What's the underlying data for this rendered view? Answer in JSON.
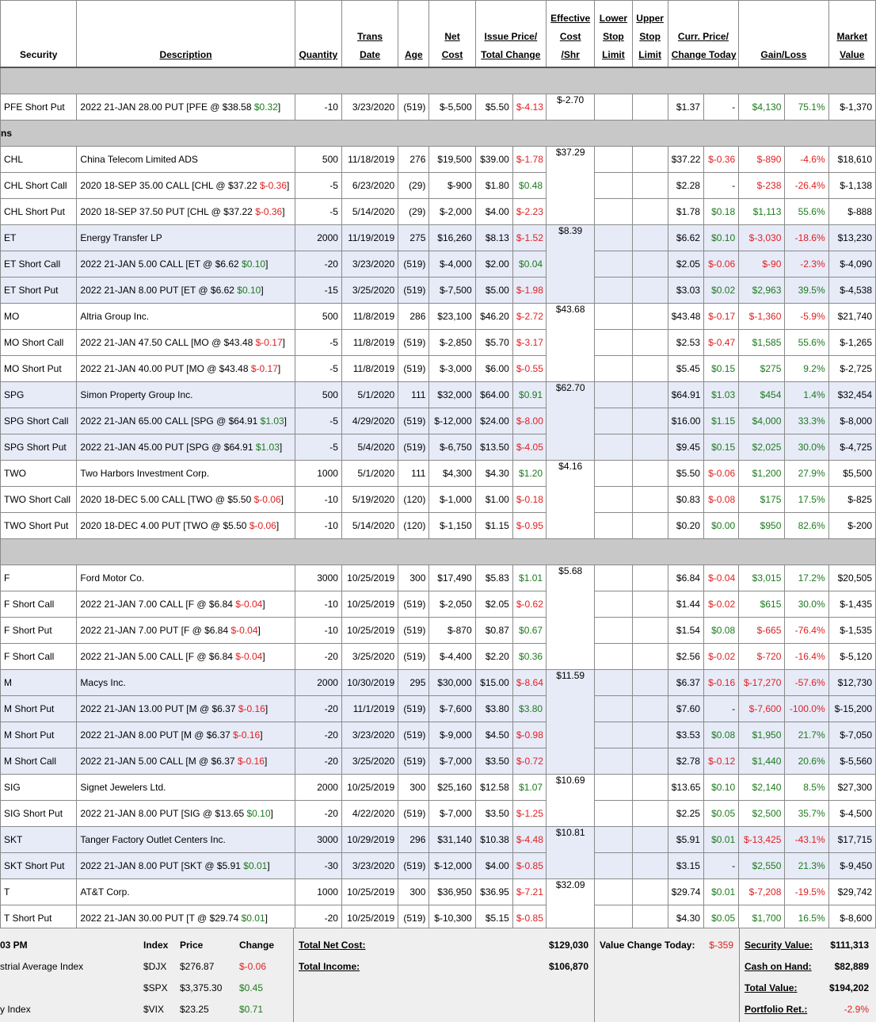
{
  "headers": {
    "security": "Security",
    "description": "Description",
    "quantity": "Quantity",
    "trans_date": [
      "Trans",
      "Date"
    ],
    "age": "Age",
    "net_cost": [
      "Net",
      "Cost"
    ],
    "issue_price": [
      "Issue Price/",
      "Total Change"
    ],
    "effective_cost": [
      "Effective",
      "Cost",
      "/Shr"
    ],
    "lower_stop": [
      "Lower",
      "Stop",
      "Limit"
    ],
    "upper_stop": [
      "Upper",
      "Stop",
      "Limit"
    ],
    "curr_price": [
      "Curr. Price/",
      "Change Today"
    ],
    "gain_loss": "Gain/Loss",
    "market_value": [
      "Market",
      "Value"
    ]
  },
  "sections": {
    "s2_label": "ns"
  },
  "rows": [
    {
      "sec": "PFE Short Put",
      "desc": "2022 21-JAN 28.00 PUT [PFE @ $38.58 ",
      "dchg": "$0.32",
      "dcls": "pos",
      "qty": "-10",
      "date": "3/23/2020",
      "age": "(519)",
      "net": "$-5,500",
      "issue": "$5.50",
      "tchg": "$-4.13",
      "tcls": "neg",
      "eff": "$-2.70",
      "curr": "$1.37",
      "ctoday": "-",
      "ccls": "",
      "gl": "$4,130",
      "glcls": "pos",
      "glpct": "75.1%",
      "mv": "$-1,370",
      "alt": false,
      "effspan": 1
    },
    {
      "sec": "CHL",
      "desc": "China Telecom Limited ADS",
      "dchg": "",
      "dcls": "",
      "qty": "500",
      "date": "11/18/2019",
      "age": "276",
      "net": "$19,500",
      "issue": "$39.00",
      "tchg": "$-1.78",
      "tcls": "neg",
      "eff": "$37.29",
      "curr": "$37.22",
      "ctoday": "$-0.36",
      "ccls": "neg",
      "gl": "$-890",
      "glcls": "neg",
      "glpct": "-4.6%",
      "mv": "$18,610",
      "alt": false,
      "effspan": 3
    },
    {
      "sec": "CHL Short Call",
      "desc": "2020 18-SEP 35.00 CALL [CHL @ $37.22 ",
      "dchg": "$-0.36",
      "dcls": "neg",
      "qty": "-5",
      "date": "6/23/2020",
      "age": "(29)",
      "net": "$-900",
      "issue": "$1.80",
      "tchg": "$0.48",
      "tcls": "pos",
      "eff": "",
      "curr": "$2.28",
      "ctoday": "-",
      "ccls": "",
      "gl": "$-238",
      "glcls": "neg",
      "glpct": "-26.4%",
      "mv": "$-1,138",
      "alt": false,
      "effspan": 0
    },
    {
      "sec": "CHL Short Put",
      "desc": "2020 18-SEP 37.50 PUT [CHL @ $37.22 ",
      "dchg": "$-0.36",
      "dcls": "neg",
      "qty": "-5",
      "date": "5/14/2020",
      "age": "(29)",
      "net": "$-2,000",
      "issue": "$4.00",
      "tchg": "$-2.23",
      "tcls": "neg",
      "eff": "",
      "curr": "$1.78",
      "ctoday": "$0.18",
      "ccls": "pos",
      "gl": "$1,113",
      "glcls": "pos",
      "glpct": "55.6%",
      "mv": "$-888",
      "alt": false,
      "effspan": 0
    },
    {
      "sec": "ET",
      "desc": "Energy Transfer LP",
      "dchg": "",
      "dcls": "",
      "qty": "2000",
      "date": "11/19/2019",
      "age": "275",
      "net": "$16,260",
      "issue": "$8.13",
      "tchg": "$-1.52",
      "tcls": "neg",
      "eff": "$8.39",
      "curr": "$6.62",
      "ctoday": "$0.10",
      "ccls": "pos",
      "gl": "$-3,030",
      "glcls": "neg",
      "glpct": "-18.6%",
      "mv": "$13,230",
      "alt": true,
      "effspan": 3
    },
    {
      "sec": "ET Short Call",
      "desc": "2022 21-JAN 5.00 CALL [ET @ $6.62 ",
      "dchg": "$0.10",
      "dcls": "pos",
      "qty": "-20",
      "date": "3/23/2020",
      "age": "(519)",
      "net": "$-4,000",
      "issue": "$2.00",
      "tchg": "$0.04",
      "tcls": "pos",
      "eff": "",
      "curr": "$2.05",
      "ctoday": "$-0.06",
      "ccls": "neg",
      "gl": "$-90",
      "glcls": "neg",
      "glpct": "-2.3%",
      "mv": "$-4,090",
      "alt": true,
      "effspan": 0
    },
    {
      "sec": "ET Short Put",
      "desc": "2022 21-JAN 8.00 PUT [ET @ $6.62 ",
      "dchg": "$0.10",
      "dcls": "pos",
      "qty": "-15",
      "date": "3/25/2020",
      "age": "(519)",
      "net": "$-7,500",
      "issue": "$5.00",
      "tchg": "$-1.98",
      "tcls": "neg",
      "eff": "",
      "curr": "$3.03",
      "ctoday": "$0.02",
      "ccls": "pos",
      "gl": "$2,963",
      "glcls": "pos",
      "glpct": "39.5%",
      "mv": "$-4,538",
      "alt": true,
      "effspan": 0
    },
    {
      "sec": "MO",
      "desc": "Altria Group Inc.",
      "dchg": "",
      "dcls": "",
      "qty": "500",
      "date": "11/8/2019",
      "age": "286",
      "net": "$23,100",
      "issue": "$46.20",
      "tchg": "$-2.72",
      "tcls": "neg",
      "eff": "$43.68",
      "curr": "$43.48",
      "ctoday": "$-0.17",
      "ccls": "neg",
      "gl": "$-1,360",
      "glcls": "neg",
      "glpct": "-5.9%",
      "mv": "$21,740",
      "alt": false,
      "effspan": 3
    },
    {
      "sec": "MO Short Call",
      "desc": "2022 21-JAN 47.50 CALL [MO @ $43.48 ",
      "dchg": "$-0.17",
      "dcls": "neg",
      "qty": "-5",
      "date": "11/8/2019",
      "age": "(519)",
      "net": "$-2,850",
      "issue": "$5.70",
      "tchg": "$-3.17",
      "tcls": "neg",
      "eff": "",
      "curr": "$2.53",
      "ctoday": "$-0.47",
      "ccls": "neg",
      "gl": "$1,585",
      "glcls": "pos",
      "glpct": "55.6%",
      "mv": "$-1,265",
      "alt": false,
      "effspan": 0
    },
    {
      "sec": "MO Short Put",
      "desc": "2022 21-JAN 40.00 PUT [MO @ $43.48 ",
      "dchg": "$-0.17",
      "dcls": "neg",
      "qty": "-5",
      "date": "11/8/2019",
      "age": "(519)",
      "net": "$-3,000",
      "issue": "$6.00",
      "tchg": "$-0.55",
      "tcls": "neg",
      "eff": "",
      "curr": "$5.45",
      "ctoday": "$0.15",
      "ccls": "pos",
      "gl": "$275",
      "glcls": "pos",
      "glpct": "9.2%",
      "mv": "$-2,725",
      "alt": false,
      "effspan": 0
    },
    {
      "sec": "SPG",
      "desc": "Simon Property Group Inc.",
      "dchg": "",
      "dcls": "",
      "qty": "500",
      "date": "5/1/2020",
      "age": "111",
      "net": "$32,000",
      "issue": "$64.00",
      "tchg": "$0.91",
      "tcls": "pos",
      "eff": "$62.70",
      "curr": "$64.91",
      "ctoday": "$1.03",
      "ccls": "pos",
      "gl": "$454",
      "glcls": "pos",
      "glpct": "1.4%",
      "mv": "$32,454",
      "alt": true,
      "effspan": 3
    },
    {
      "sec": "SPG Short Call",
      "desc": "2022 21-JAN 65.00 CALL [SPG @ $64.91 ",
      "dchg": "$1.03",
      "dcls": "pos",
      "qty": "-5",
      "date": "4/29/2020",
      "age": "(519)",
      "net": "$-12,000",
      "issue": "$24.00",
      "tchg": "$-8.00",
      "tcls": "neg",
      "eff": "",
      "curr": "$16.00",
      "ctoday": "$1.15",
      "ccls": "pos",
      "gl": "$4,000",
      "glcls": "pos",
      "glpct": "33.3%",
      "mv": "$-8,000",
      "alt": true,
      "effspan": 0
    },
    {
      "sec": "SPG Short Put",
      "desc": "2022 21-JAN 45.00 PUT [SPG @ $64.91 ",
      "dchg": "$1.03",
      "dcls": "pos",
      "qty": "-5",
      "date": "5/4/2020",
      "age": "(519)",
      "net": "$-6,750",
      "issue": "$13.50",
      "tchg": "$-4.05",
      "tcls": "neg",
      "eff": "",
      "curr": "$9.45",
      "ctoday": "$0.15",
      "ccls": "pos",
      "gl": "$2,025",
      "glcls": "pos",
      "glpct": "30.0%",
      "mv": "$-4,725",
      "alt": true,
      "effspan": 0
    },
    {
      "sec": "TWO",
      "desc": "Two Harbors Investment Corp.",
      "dchg": "",
      "dcls": "",
      "qty": "1000",
      "date": "5/1/2020",
      "age": "111",
      "net": "$4,300",
      "issue": "$4.30",
      "tchg": "$1.20",
      "tcls": "pos",
      "eff": "$4.16",
      "curr": "$5.50",
      "ctoday": "$-0.06",
      "ccls": "neg",
      "gl": "$1,200",
      "glcls": "pos",
      "glpct": "27.9%",
      "mv": "$5,500",
      "alt": false,
      "effspan": 3
    },
    {
      "sec": "TWO Short Call",
      "desc": "2020 18-DEC 5.00 CALL [TWO @ $5.50 ",
      "dchg": "$-0.06",
      "dcls": "neg",
      "qty": "-10",
      "date": "5/19/2020",
      "age": "(120)",
      "net": "$-1,000",
      "issue": "$1.00",
      "tchg": "$-0.18",
      "tcls": "neg",
      "eff": "",
      "curr": "$0.83",
      "ctoday": "$-0.08",
      "ccls": "neg",
      "gl": "$175",
      "glcls": "pos",
      "glpct": "17.5%",
      "mv": "$-825",
      "alt": false,
      "effspan": 0
    },
    {
      "sec": "TWO Short Put",
      "desc": "2020 18-DEC 4.00 PUT [TWO @ $5.50 ",
      "dchg": "$-0.06",
      "dcls": "neg",
      "qty": "-10",
      "date": "5/14/2020",
      "age": "(120)",
      "net": "$-1,150",
      "issue": "$1.15",
      "tchg": "$-0.95",
      "tcls": "neg",
      "eff": "",
      "curr": "$0.20",
      "ctoday": "$0.00",
      "ccls": "pos",
      "gl": "$950",
      "glcls": "pos",
      "glpct": "82.6%",
      "mv": "$-200",
      "alt": false,
      "effspan": 0
    },
    {
      "sec": "F",
      "desc": "Ford Motor Co.",
      "dchg": "",
      "dcls": "",
      "qty": "3000",
      "date": "10/25/2019",
      "age": "300",
      "net": "$17,490",
      "issue": "$5.83",
      "tchg": "$1.01",
      "tcls": "pos",
      "eff": "$5.68",
      "curr": "$6.84",
      "ctoday": "$-0.04",
      "ccls": "neg",
      "gl": "$3,015",
      "glcls": "pos",
      "glpct": "17.2%",
      "mv": "$20,505",
      "alt": false,
      "effspan": 4
    },
    {
      "sec": "F Short Call",
      "desc": "2022 21-JAN 7.00 CALL [F @ $6.84 ",
      "dchg": "$-0.04",
      "dcls": "neg",
      "qty": "-10",
      "date": "10/25/2019",
      "age": "(519)",
      "net": "$-2,050",
      "issue": "$2.05",
      "tchg": "$-0.62",
      "tcls": "neg",
      "eff": "",
      "curr": "$1.44",
      "ctoday": "$-0.02",
      "ccls": "neg",
      "gl": "$615",
      "glcls": "pos",
      "glpct": "30.0%",
      "mv": "$-1,435",
      "alt": false,
      "effspan": 0
    },
    {
      "sec": "F Short Put",
      "desc": "2022 21-JAN 7.00 PUT [F @ $6.84 ",
      "dchg": "$-0.04",
      "dcls": "neg",
      "qty": "-10",
      "date": "10/25/2019",
      "age": "(519)",
      "net": "$-870",
      "issue": "$0.87",
      "tchg": "$0.67",
      "tcls": "pos",
      "eff": "",
      "curr": "$1.54",
      "ctoday": "$0.08",
      "ccls": "pos",
      "gl": "$-665",
      "glcls": "neg",
      "glpct": "-76.4%",
      "mv": "$-1,535",
      "alt": false,
      "effspan": 0
    },
    {
      "sec": "F Short Call",
      "desc": "2022 21-JAN 5.00 CALL [F @ $6.84 ",
      "dchg": "$-0.04",
      "dcls": "neg",
      "qty": "-20",
      "date": "3/25/2020",
      "age": "(519)",
      "net": "$-4,400",
      "issue": "$2.20",
      "tchg": "$0.36",
      "tcls": "pos",
      "eff": "",
      "curr": "$2.56",
      "ctoday": "$-0.02",
      "ccls": "neg",
      "gl": "$-720",
      "glcls": "neg",
      "glpct": "-16.4%",
      "mv": "$-5,120",
      "alt": false,
      "effspan": 0
    },
    {
      "sec": "M",
      "desc": "Macys Inc.",
      "dchg": "",
      "dcls": "",
      "qty": "2000",
      "date": "10/30/2019",
      "age": "295",
      "net": "$30,000",
      "issue": "$15.00",
      "tchg": "$-8.64",
      "tcls": "neg",
      "eff": "$11.59",
      "curr": "$6.37",
      "ctoday": "$-0.16",
      "ccls": "neg",
      "gl": "$-17,270",
      "glcls": "neg",
      "glpct": "-57.6%",
      "mv": "$12,730",
      "alt": true,
      "effspan": 4
    },
    {
      "sec": "M Short Put",
      "desc": "2022 21-JAN 13.00 PUT [M @ $6.37 ",
      "dchg": "$-0.16",
      "dcls": "neg",
      "qty": "-20",
      "date": "11/1/2019",
      "age": "(519)",
      "net": "$-7,600",
      "issue": "$3.80",
      "tchg": "$3.80",
      "tcls": "pos",
      "eff": "",
      "curr": "$7.60",
      "ctoday": "-",
      "ccls": "",
      "gl": "$-7,600",
      "glcls": "neg",
      "glpct": "-100.0%",
      "mv": "$-15,200",
      "alt": true,
      "effspan": 0
    },
    {
      "sec": "M Short Put",
      "desc": "2022 21-JAN 8.00 PUT [M @ $6.37 ",
      "dchg": "$-0.16",
      "dcls": "neg",
      "qty": "-20",
      "date": "3/23/2020",
      "age": "(519)",
      "net": "$-9,000",
      "issue": "$4.50",
      "tchg": "$-0.98",
      "tcls": "neg",
      "eff": "",
      "curr": "$3.53",
      "ctoday": "$0.08",
      "ccls": "pos",
      "gl": "$1,950",
      "glcls": "pos",
      "glpct": "21.7%",
      "mv": "$-7,050",
      "alt": true,
      "effspan": 0
    },
    {
      "sec": "M Short Call",
      "desc": "2022 21-JAN 5.00 CALL [M @ $6.37 ",
      "dchg": "$-0.16",
      "dcls": "neg",
      "qty": "-20",
      "date": "3/25/2020",
      "age": "(519)",
      "net": "$-7,000",
      "issue": "$3.50",
      "tchg": "$-0.72",
      "tcls": "neg",
      "eff": "",
      "curr": "$2.78",
      "ctoday": "$-0.12",
      "ccls": "neg",
      "gl": "$1,440",
      "glcls": "pos",
      "glpct": "20.6%",
      "mv": "$-5,560",
      "alt": true,
      "effspan": 0
    },
    {
      "sec": "SIG",
      "desc": "Signet Jewelers Ltd.",
      "dchg": "",
      "dcls": "",
      "qty": "2000",
      "date": "10/25/2019",
      "age": "300",
      "net": "$25,160",
      "issue": "$12.58",
      "tchg": "$1.07",
      "tcls": "pos",
      "eff": "$10.69",
      "curr": "$13.65",
      "ctoday": "$0.10",
      "ccls": "pos",
      "gl": "$2,140",
      "glcls": "pos",
      "glpct": "8.5%",
      "mv": "$27,300",
      "alt": false,
      "effspan": 2
    },
    {
      "sec": "SIG Short Put",
      "desc": "2022 21-JAN 8.00 PUT [SIG @ $13.65 ",
      "dchg": "$0.10",
      "dcls": "pos",
      "qty": "-20",
      "date": "4/22/2020",
      "age": "(519)",
      "net": "$-7,000",
      "issue": "$3.50",
      "tchg": "$-1.25",
      "tcls": "neg",
      "eff": "",
      "curr": "$2.25",
      "ctoday": "$0.05",
      "ccls": "pos",
      "gl": "$2,500",
      "glcls": "pos",
      "glpct": "35.7%",
      "mv": "$-4,500",
      "alt": false,
      "effspan": 0
    },
    {
      "sec": "SKT",
      "desc": "Tanger Factory Outlet Centers Inc.",
      "dchg": "",
      "dcls": "",
      "qty": "3000",
      "date": "10/29/2019",
      "age": "296",
      "net": "$31,140",
      "issue": "$10.38",
      "tchg": "$-4.48",
      "tcls": "neg",
      "eff": "$10.81",
      "curr": "$5.91",
      "ctoday": "$0.01",
      "ccls": "pos",
      "gl": "$-13,425",
      "glcls": "neg",
      "glpct": "-43.1%",
      "mv": "$17,715",
      "alt": true,
      "effspan": 2
    },
    {
      "sec": "SKT Short Put",
      "desc": "2022 21-JAN 8.00 PUT [SKT @ $5.91 ",
      "dchg": "$0.01",
      "dcls": "pos",
      "qty": "-30",
      "date": "3/23/2020",
      "age": "(519)",
      "net": "$-12,000",
      "issue": "$4.00",
      "tchg": "$-0.85",
      "tcls": "neg",
      "eff": "",
      "curr": "$3.15",
      "ctoday": "-",
      "ccls": "",
      "gl": "$2,550",
      "glcls": "pos",
      "glpct": "21.3%",
      "mv": "$-9,450",
      "alt": true,
      "effspan": 0
    },
    {
      "sec": "T",
      "desc": "AT&T Corp.",
      "dchg": "",
      "dcls": "",
      "qty": "1000",
      "date": "10/25/2019",
      "age": "300",
      "net": "$36,950",
      "issue": "$36.95",
      "tchg": "$-7.21",
      "tcls": "neg",
      "eff": "$32.09",
      "curr": "$29.74",
      "ctoday": "$0.01",
      "ccls": "pos",
      "gl": "$-7,208",
      "glcls": "neg",
      "glpct": "-19.5%",
      "mv": "$29,742",
      "alt": false,
      "effspan": 2
    },
    {
      "sec": "T Short Put",
      "desc": "2022 21-JAN 30.00 PUT [T @ $29.74 ",
      "dchg": "$0.01",
      "dcls": "pos",
      "qty": "-20",
      "date": "10/25/2019",
      "age": "(519)",
      "net": "$-10,300",
      "issue": "$5.15",
      "tchg": "$-0.85",
      "tcls": "neg",
      "eff": "",
      "curr": "$4.30",
      "ctoday": "$0.05",
      "ccls": "pos",
      "gl": "$1,700",
      "glcls": "pos",
      "glpct": "16.5%",
      "mv": "$-8,600",
      "alt": false,
      "effspan": 0
    }
  ],
  "footer": {
    "time": "03 PM",
    "index_header": "Index",
    "price_header": "Price",
    "change_header": "Change",
    "indices": [
      {
        "name": "strial Average Index",
        "sym": "$DJX",
        "price": "$276.87",
        "chg": "$-0.06",
        "cls": "neg"
      },
      {
        "name": "",
        "sym": "$SPX",
        "price": "$3,375.30",
        "chg": "$0.45",
        "cls": "pos"
      },
      {
        "name": "y Index",
        "sym": "$VIX",
        "price": "$23.25",
        "chg": "$0.71",
        "cls": "pos"
      }
    ],
    "total_net_cost_label": "Total Net Cost:",
    "total_net_cost": "$129,030",
    "total_income_label": "Total Income:",
    "total_income": "$106,870",
    "value_change_label": "Value Change Today:",
    "value_change": "$-359",
    "security_value_label": "Security Value:",
    "security_value": "$111,313",
    "cash_label": "Cash on Hand:",
    "cash": "$82,889",
    "total_value_label": "Total Value:",
    "total_value": "$194,202",
    "portfolio_ret_label": "Portfolio Ret.:",
    "portfolio_ret": "-2.9%"
  },
  "colors": {
    "positive": "#1c7a1c",
    "negative": "#e02020",
    "alt_row": "#e7ebf8",
    "section_bar": "#c8c8c8"
  }
}
